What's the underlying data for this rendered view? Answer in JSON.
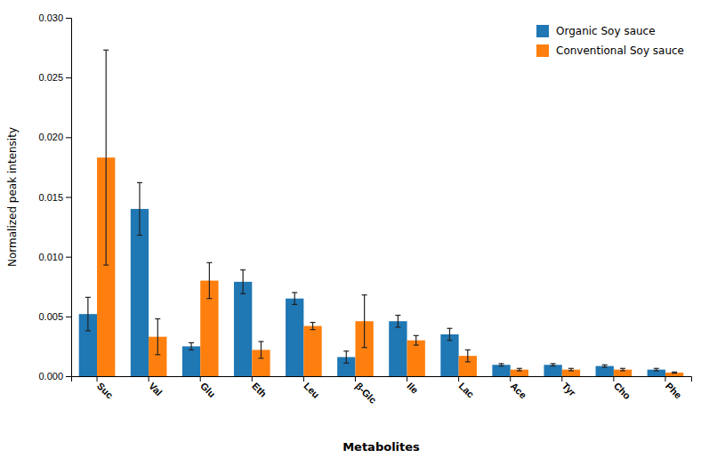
{
  "chart_data": {
    "type": "bar",
    "categories": [
      "Suc",
      "Val",
      "Glu",
      "Eth",
      "Leu",
      "β-Glc",
      "Ile",
      "Lac",
      "Ace",
      "Tyr",
      "Cho",
      "Phe"
    ],
    "series": [
      {
        "name": "Organic Soy sauce",
        "values": [
          0.0052,
          0.014,
          0.0025,
          0.0079,
          0.0065,
          0.0016,
          0.0046,
          0.0035,
          0.00095,
          0.00095,
          0.00085,
          0.00055
        ],
        "errors": [
          0.0014,
          0.0022,
          0.0003,
          0.001,
          0.0005,
          0.0005,
          0.0005,
          0.0005,
          0.0001,
          0.0001,
          0.0001,
          0.0001
        ]
      },
      {
        "name": "Conventional Soy sauce",
        "values": [
          0.0183,
          0.0033,
          0.008,
          0.0022,
          0.0042,
          0.0046,
          0.003,
          0.0017,
          0.00055,
          0.00055,
          0.00055,
          0.0003
        ],
        "errors": [
          0.009,
          0.0015,
          0.0015,
          0.0007,
          0.0003,
          0.0022,
          0.0004,
          0.0005,
          0.0001,
          0.0001,
          0.0001,
          5e-05
        ]
      }
    ],
    "xlabel": "Metabolites",
    "ylabel": "Normalized peak intensity",
    "ylim": [
      0,
      0.03
    ],
    "yticks": [
      {
        "value": 0,
        "label": "0.000"
      },
      0.005,
      {
        "value": 0.01,
        "label": "0.010"
      },
      0.015,
      {
        "value": 0.02,
        "label": "0.020"
      },
      0.025,
      {
        "value": 0.03,
        "label": "0.030"
      }
    ],
    "grid": false,
    "legend": "upper right"
  }
}
